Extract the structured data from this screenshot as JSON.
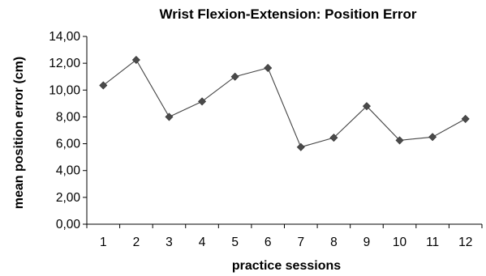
{
  "chart_data": {
    "type": "line",
    "title": "Wrist Flexion-Extension: Position Error",
    "xlabel": "practice sessions",
    "ylabel": "mean position error (cm)",
    "x": [
      1,
      2,
      3,
      4,
      5,
      6,
      7,
      8,
      9,
      10,
      11,
      12
    ],
    "x_tick_labels": [
      "1",
      "2",
      "3",
      "4",
      "5",
      "6",
      "7",
      "8",
      "9",
      "10",
      "11",
      "12"
    ],
    "series": [
      {
        "values": [
          10.35,
          12.25,
          8.0,
          9.15,
          11.0,
          11.65,
          5.75,
          6.45,
          8.8,
          6.25,
          6.5,
          7.85
        ],
        "color": "#4a4a4a",
        "marker": "diamond"
      }
    ],
    "ylim": [
      0,
      14
    ],
    "y_ticks": [
      0,
      2,
      4,
      6,
      8,
      10,
      12,
      14
    ],
    "y_tick_labels": [
      "0,00",
      "2,00",
      "4,00",
      "6,00",
      "8,00",
      "10,00",
      "12,00",
      "14,00"
    ],
    "grid": false,
    "legend": "none"
  }
}
